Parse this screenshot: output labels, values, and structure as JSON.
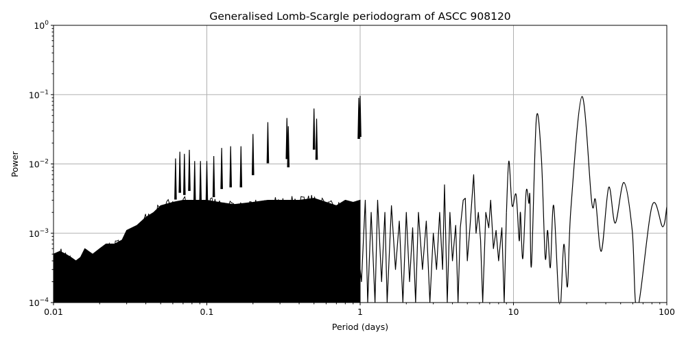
{
  "chart_data": {
    "type": "line",
    "title": "Generalised Lomb-Scargle periodogram of ASCC 908120",
    "xlabel": "Period (days)",
    "ylabel": "Power",
    "xscale": "log",
    "yscale": "log",
    "xlim": [
      0.01,
      100
    ],
    "ylim": [
      0.0001,
      1
    ],
    "grid": true,
    "line_color": "#000000",
    "grid_color": "#b0b0b0",
    "x_ticks": [
      {
        "value": 0.01,
        "label": "0.01"
      },
      {
        "value": 0.1,
        "label": "0.1"
      },
      {
        "value": 1,
        "label": "1"
      },
      {
        "value": 10,
        "label": "10"
      },
      {
        "value": 100,
        "label": "100"
      }
    ],
    "y_ticks": [
      {
        "value": 0.0001,
        "base": "10",
        "exp": "−4"
      },
      {
        "value": 0.001,
        "base": "10",
        "exp": "−3"
      },
      {
        "value": 0.01,
        "base": "10",
        "exp": "−2"
      },
      {
        "value": 0.1,
        "base": "10",
        "exp": "−1"
      },
      {
        "value": 1,
        "base": "10",
        "exp": "0"
      }
    ],
    "dense_noise_envelope": [
      [
        0.01,
        0.0005
      ],
      [
        0.011,
        0.00055
      ],
      [
        0.012,
        0.0005
      ],
      [
        0.013,
        0.00045
      ],
      [
        0.014,
        0.0004
      ],
      [
        0.015,
        0.00045
      ],
      [
        0.016,
        0.0006
      ],
      [
        0.018,
        0.0005
      ],
      [
        0.02,
        0.0006
      ],
      [
        0.022,
        0.0007
      ],
      [
        0.025,
        0.0007
      ],
      [
        0.028,
        0.0008
      ],
      [
        0.03,
        0.0011
      ],
      [
        0.035,
        0.0013
      ],
      [
        0.04,
        0.0017
      ],
      [
        0.045,
        0.002
      ],
      [
        0.05,
        0.0025
      ],
      [
        0.06,
        0.0028
      ],
      [
        0.07,
        0.003
      ],
      [
        0.08,
        0.003
      ],
      [
        0.1,
        0.003
      ],
      [
        0.12,
        0.0028
      ],
      [
        0.15,
        0.0026
      ],
      [
        0.2,
        0.0028
      ],
      [
        0.25,
        0.003
      ],
      [
        0.3,
        0.003
      ],
      [
        0.4,
        0.003
      ],
      [
        0.5,
        0.0032
      ],
      [
        0.6,
        0.0028
      ],
      [
        0.7,
        0.0025
      ],
      [
        0.8,
        0.003
      ],
      [
        0.9,
        0.0028
      ],
      [
        1.0,
        0.003
      ]
    ],
    "harmonic_peaks": [
      [
        0.0625,
        0.012
      ],
      [
        0.0667,
        0.015
      ],
      [
        0.0714,
        0.014
      ],
      [
        0.0769,
        0.016
      ],
      [
        0.0833,
        0.011
      ],
      [
        0.0909,
        0.011
      ],
      [
        0.1,
        0.011
      ],
      [
        0.111,
        0.013
      ],
      [
        0.125,
        0.017
      ],
      [
        0.143,
        0.018
      ],
      [
        0.167,
        0.018
      ],
      [
        0.2,
        0.027
      ],
      [
        0.25,
        0.04
      ],
      [
        0.333,
        0.046
      ],
      [
        0.34,
        0.035
      ],
      [
        0.5,
        0.063
      ],
      [
        0.52,
        0.045
      ],
      [
        0.98,
        0.09
      ],
      [
        1.0,
        0.096
      ]
    ],
    "oscillating_series": [
      [
        1.0,
        0.0003
      ],
      [
        1.02,
        0.0002
      ],
      [
        1.08,
        0.003
      ],
      [
        1.12,
        0.0001
      ],
      [
        1.18,
        0.002
      ],
      [
        1.25,
        0.0001
      ],
      [
        1.3,
        0.003
      ],
      [
        1.38,
        0.0002
      ],
      [
        1.45,
        0.002
      ],
      [
        1.5,
        0.0001
      ],
      [
        1.6,
        0.0025
      ],
      [
        1.7,
        0.0003
      ],
      [
        1.8,
        0.0015
      ],
      [
        1.9,
        0.0001
      ],
      [
        2.0,
        0.002
      ],
      [
        2.1,
        0.0002
      ],
      [
        2.2,
        0.0012
      ],
      [
        2.3,
        0.0001
      ],
      [
        2.4,
        0.002
      ],
      [
        2.55,
        0.0003
      ],
      [
        2.7,
        0.0015
      ],
      [
        2.85,
        0.0001
      ],
      [
        3.0,
        0.001
      ],
      [
        3.15,
        0.0003
      ],
      [
        3.3,
        0.002
      ],
      [
        3.45,
        0.0003
      ],
      [
        3.55,
        0.005
      ],
      [
        3.7,
        0.0001
      ],
      [
        3.85,
        0.002
      ],
      [
        4.0,
        0.0004
      ],
      [
        4.2,
        0.0013
      ],
      [
        4.35,
        0.0001
      ],
      [
        4.5,
        0.0012
      ],
      [
        4.7,
        0.003
      ],
      [
        4.85,
        0.0032
      ],
      [
        5.0,
        0.0004
      ],
      [
        5.2,
        0.0012
      ],
      [
        5.5,
        0.007
      ],
      [
        5.7,
        0.001
      ],
      [
        5.9,
        0.002
      ],
      [
        6.1,
        0.0008
      ],
      [
        6.3,
        0.0001
      ],
      [
        6.6,
        0.002
      ],
      [
        6.9,
        0.0012
      ],
      [
        7.1,
        0.003
      ],
      [
        7.4,
        0.0006
      ],
      [
        7.7,
        0.0011
      ],
      [
        8.0,
        0.0004
      ],
      [
        8.4,
        0.0012
      ],
      [
        8.7,
        0.0001
      ],
      [
        9.0,
        0.002
      ]
    ],
    "smooth_series": [
      [
        9.0,
        0.002
      ],
      [
        9.33,
        0.011
      ],
      [
        9.8,
        0.0025
      ],
      [
        10.4,
        0.0036
      ],
      [
        10.9,
        0.00078
      ],
      [
        11.1,
        0.002
      ],
      [
        11.5,
        0.00043
      ],
      [
        12.1,
        0.004
      ],
      [
        12.6,
        0.0027
      ],
      [
        12.8,
        0.0034
      ],
      [
        13.1,
        0.00034
      ],
      [
        14.1,
        0.045
      ],
      [
        15.2,
        0.0124
      ],
      [
        16.1,
        0.00045
      ],
      [
        16.7,
        0.0011
      ],
      [
        17.4,
        0.00032
      ],
      [
        18.3,
        0.0025
      ],
      [
        20.0,
        8e-05
      ],
      [
        21.3,
        0.00069
      ],
      [
        22.5,
        0.00017
      ],
      [
        23.7,
        0.0023
      ],
      [
        28.0,
        0.094
      ],
      [
        32.4,
        0.0028
      ],
      [
        34.3,
        0.003
      ],
      [
        37.4,
        0.00055
      ],
      [
        41.8,
        0.0046
      ],
      [
        46.1,
        0.0014
      ],
      [
        52.5,
        0.0054
      ],
      [
        59.5,
        0.0011
      ],
      [
        64.2,
        8e-05
      ],
      [
        80.2,
        0.0025
      ],
      [
        94,
        0.00124
      ],
      [
        100,
        0.0024
      ]
    ]
  }
}
